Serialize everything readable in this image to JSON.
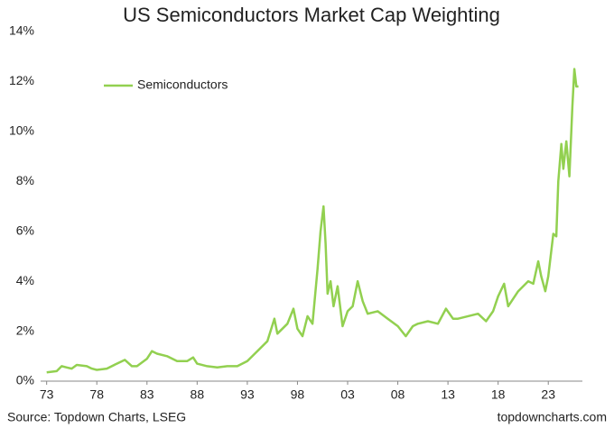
{
  "chart_data": {
    "type": "line",
    "title": "US Semiconductors Market Cap Weighting",
    "source": "Source: Topdown Charts, LSEG",
    "watermark": "topdowncharts.com",
    "x": [
      1973,
      1974,
      1974.5,
      1975,
      1975.5,
      1976,
      1977,
      1977.5,
      1978,
      1979,
      1980,
      1980.8,
      1981.5,
      1982,
      1983,
      1983.5,
      1984,
      1985,
      1986,
      1987,
      1987.6,
      1988,
      1989,
      1990,
      1991,
      1992,
      1993,
      1994,
      1995,
      1995.7,
      1996,
      1997,
      1997.6,
      1998,
      1998.5,
      1999,
      1999.5,
      2000,
      2000.3,
      2000.6,
      2000.8,
      2001,
      2001.3,
      2001.6,
      2002,
      2002.5,
      2003,
      2003.5,
      2004,
      2004.5,
      2005,
      2006,
      2007,
      2008,
      2008.8,
      2009.5,
      2010,
      2011,
      2012,
      2012.8,
      2013.5,
      2014,
      2015,
      2016,
      2016.8,
      2017.5,
      2018,
      2018.6,
      2019,
      2020,
      2021,
      2021.5,
      2022,
      2022.3,
      2022.7,
      2023,
      2023.5,
      2023.8,
      2024,
      2024.3,
      2024.5,
      2024.8,
      2025.1,
      2025.4,
      2025.6,
      2025.8,
      2026
    ],
    "series": [
      {
        "name": "Semiconductors",
        "color": "#92d050",
        "values": [
          0.35,
          0.4,
          0.6,
          0.55,
          0.5,
          0.65,
          0.6,
          0.5,
          0.45,
          0.5,
          0.7,
          0.85,
          0.6,
          0.6,
          0.9,
          1.2,
          1.1,
          1.0,
          0.8,
          0.8,
          0.95,
          0.7,
          0.6,
          0.55,
          0.6,
          0.6,
          0.8,
          1.2,
          1.6,
          2.5,
          1.9,
          2.3,
          2.9,
          2.1,
          1.8,
          2.6,
          2.3,
          4.5,
          6.0,
          7.0,
          5.5,
          3.5,
          4.0,
          3.0,
          3.8,
          2.2,
          2.8,
          3.0,
          4.0,
          3.2,
          2.7,
          2.8,
          2.5,
          2.2,
          1.8,
          2.2,
          2.3,
          2.4,
          2.3,
          2.9,
          2.5,
          2.5,
          2.6,
          2.7,
          2.4,
          2.8,
          3.4,
          3.9,
          3.0,
          3.6,
          4.0,
          3.9,
          4.8,
          4.2,
          3.6,
          4.2,
          5.9,
          5.8,
          8.0,
          9.5,
          8.5,
          9.6,
          8.2,
          11.0,
          12.5,
          11.8,
          11.8
        ]
      }
    ],
    "xlim": [
      1972.4,
      2026.4
    ],
    "xticks": [
      {
        "value": 1973,
        "label": "73"
      },
      {
        "value": 1978,
        "label": "78"
      },
      {
        "value": 1983,
        "label": "83"
      },
      {
        "value": 1988,
        "label": "88"
      },
      {
        "value": 1993,
        "label": "93"
      },
      {
        "value": 1998,
        "label": "98"
      },
      {
        "value": 2003,
        "label": "03"
      },
      {
        "value": 2008,
        "label": "08"
      },
      {
        "value": 2013,
        "label": "13"
      },
      {
        "value": 2018,
        "label": "18"
      },
      {
        "value": 2023,
        "label": "23"
      }
    ],
    "ylim": [
      0,
      14
    ],
    "yticks": [
      {
        "value": 0,
        "label": "0%"
      },
      {
        "value": 2,
        "label": "2%"
      },
      {
        "value": 4,
        "label": "4%"
      },
      {
        "value": 6,
        "label": "6%"
      },
      {
        "value": 8,
        "label": "8%"
      },
      {
        "value": 10,
        "label": "10%"
      },
      {
        "value": 12,
        "label": "12%"
      },
      {
        "value": 14,
        "label": "14%"
      }
    ],
    "legend": "upper left"
  }
}
